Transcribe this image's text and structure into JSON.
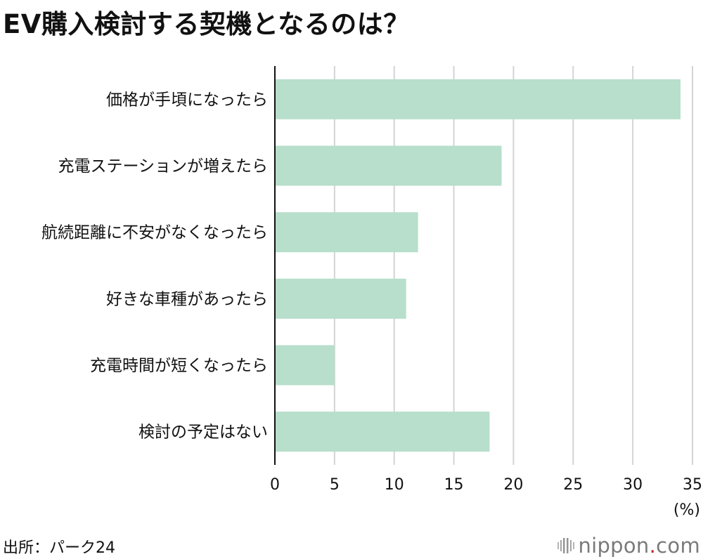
{
  "title": "EV購入検討する契機となるのは？",
  "source": "出所：パーク24",
  "brand": {
    "name": "nippon",
    "dot": ".",
    "tld": "com",
    "icon": "nippon-logo-icon"
  },
  "chart_data": {
    "type": "bar",
    "orientation": "horizontal",
    "title": "EV購入検討する契機となるのは？",
    "categories": [
      "価格が手頃になったら",
      "充電ステーションが増えたら",
      "航続距離に不安がなくなったら",
      "好きな車種があったら",
      "充電時間が短くなったら",
      "検討の予定はない"
    ],
    "values": [
      34,
      19,
      12,
      11,
      5,
      18
    ],
    "xlim": [
      0,
      35
    ],
    "xticks": [
      0,
      5,
      10,
      15,
      20,
      25,
      30,
      35
    ],
    "unit_label": "(%)",
    "grid": true,
    "bar_color": "#b7dfcb",
    "grid_color": "#d4d4d4"
  }
}
